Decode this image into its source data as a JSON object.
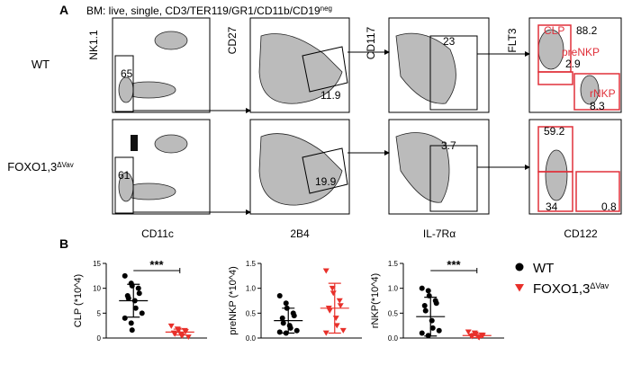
{
  "panel_a": {
    "label": "A",
    "header": "BM: live, single, CD3/TER119/GR1/CD11b/CD19",
    "header_superscript": "neg",
    "rows": [
      {
        "label": "WT"
      },
      {
        "label": "FOXO1,3",
        "superscript": "ΔVav"
      }
    ],
    "y_axis_labels": [
      "NK1.1",
      "CD27",
      "CD117",
      "FLT3"
    ],
    "x_axis_labels": [
      "CD11c",
      "2B4",
      "IL-7Rα",
      "CD122"
    ],
    "gates": {
      "row1": [
        "65",
        "11.9",
        "23",
        "88.2",
        "2.9",
        "8.3"
      ],
      "row2": [
        "61",
        "19.9",
        "3.7",
        "59.2",
        "34",
        "0.8"
      ]
    },
    "gate_names": [
      "CLP",
      "preNKP",
      "rNKP"
    ]
  },
  "panel_b": {
    "label": "B"
  },
  "legend": [
    {
      "name": "WT",
      "color": "#000000",
      "marker": "circle"
    },
    {
      "name": "FOXO1,3",
      "superscript": "ΔVav",
      "color": "#e8302a",
      "marker": "triangle"
    }
  ],
  "chart_data": [
    {
      "type": "dot",
      "ylabel": "CLP (*10^4)",
      "ylim": [
        0,
        15
      ],
      "yticks": [
        0,
        5,
        10,
        15
      ],
      "annotation": "***",
      "series": [
        {
          "color": "#000000",
          "marker": "circle",
          "values": [
            12.5,
            11,
            10.5,
            10,
            9,
            8.5,
            8,
            7.5,
            6,
            5,
            4,
            3,
            1.6
          ],
          "mean": 7.5,
          "error": 3.3
        },
        {
          "color": "#e8302a",
          "marker": "triangle",
          "values": [
            2.4,
            1.8,
            1.6,
            1.5,
            1.3,
            1.0,
            0.8,
            0.6,
            0.4,
            0.2
          ],
          "mean": 1.2,
          "error": 0.6
        }
      ]
    },
    {
      "type": "dot",
      "ylabel": "preNKP (*10^4)",
      "ylim": [
        0,
        1.5
      ],
      "yticks": [
        {
          "value": 0,
          "label": "0.0"
        },
        0.5,
        {
          "value": 1,
          "label": "1.0"
        },
        1.5
      ],
      "series": [
        {
          "color": "#000000",
          "marker": "circle",
          "values": [
            0.85,
            0.7,
            0.6,
            0.5,
            0.45,
            0.4,
            0.3,
            0.25,
            0.2,
            0.15,
            0.12,
            0.1
          ],
          "mean": 0.35,
          "error": 0.25
        },
        {
          "color": "#e8302a",
          "marker": "triangle",
          "values": [
            1.35,
            1.0,
            0.9,
            0.75,
            0.65,
            0.6,
            0.55,
            0.4,
            0.25,
            0.15,
            0.1
          ],
          "mean": 0.6,
          "error": 0.5
        }
      ]
    },
    {
      "type": "dot",
      "ylabel": "rNKP(*10^4)",
      "ylim": [
        0,
        1.5
      ],
      "yticks": [
        {
          "value": 0,
          "label": "0.0"
        },
        0.5,
        {
          "value": 1,
          "label": "1.0"
        },
        1.5
      ],
      "annotation": "***",
      "series": [
        {
          "color": "#000000",
          "marker": "circle",
          "values": [
            1.0,
            0.95,
            0.85,
            0.75,
            0.7,
            0.65,
            0.55,
            0.35,
            0.2,
            0.15,
            0.1,
            0.05
          ],
          "mean": 0.43,
          "error": 0.39
        },
        {
          "color": "#e8302a",
          "marker": "triangle",
          "values": [
            0.12,
            0.1,
            0.08,
            0.06,
            0.05,
            0.04,
            0.03,
            0.02,
            0.01
          ],
          "mean": 0.05,
          "error": 0.04
        }
      ]
    }
  ]
}
